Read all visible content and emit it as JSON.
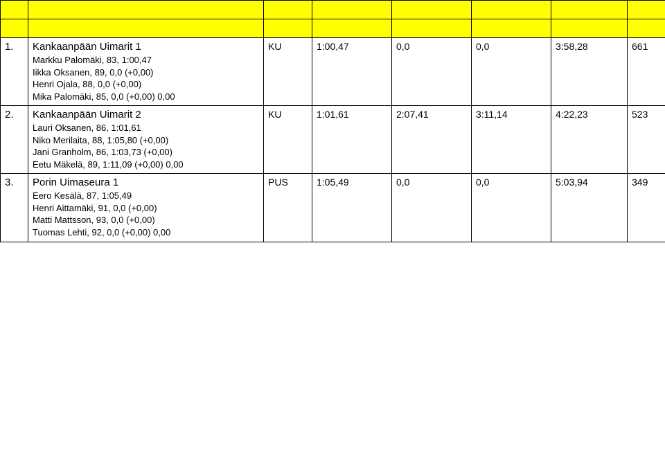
{
  "colors": {
    "header_bg": "#ffff00",
    "border": "#000000",
    "text": "#000000",
    "background": "#ffffff"
  },
  "rows": [
    {
      "num": "1.",
      "team": "Kankaanpään Uimarit 1",
      "members": "Markku Palomäki, 83, 1:00,47\nIikka Oksanen, 89, 0,0 (+0,00)\nHenri Ojala, 88, 0,0  (+0,00)\nMika Palomäki, 85, 0,0 (+0,00) 0,00",
      "club": "KU",
      "t1": "1:00,47",
      "t2": "0,0",
      "t3": "0,0",
      "t4": "3:58,28",
      "pts": "661"
    },
    {
      "num": "2.",
      "team": "Kankaanpään Uimarit 2",
      "members": "Lauri Oksanen, 86, 1:01,61\nNiko Merilaita, 88, 1:05,80 (+0,00)\nJani Granholm, 86, 1:03,73 (+0,00)\nEetu Mäkelä, 89, 1:11,09 (+0,00) 0,00",
      "club": "KU",
      "t1": "1:01,61",
      "t2": "2:07,41",
      "t3": "3:11,14",
      "t4": "4:22,23",
      "pts": "523"
    },
    {
      "num": "3.",
      "team": "Porin Uimaseura 1",
      "members": "Eero Kesälä, 87, 1:05,49\nHenri Aittamäki, 91, 0,0 (+0,00)\nMatti Mattsson, 93, 0,0 (+0,00)\nTuomas Lehti, 92, 0,0 (+0,00) 0,00",
      "club": "PUS",
      "t1": "1:05,49",
      "t2": "0,0",
      "t3": "0,0",
      "t4": "5:03,94",
      "pts": "349"
    }
  ]
}
